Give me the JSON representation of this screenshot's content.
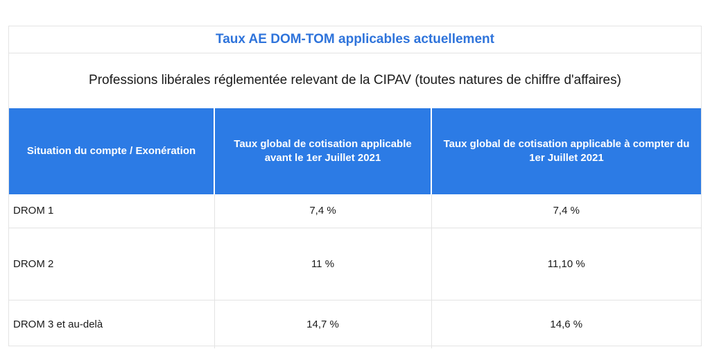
{
  "title": "Taux AE DOM-TOM applicables actuellement",
  "subtitle": "Professions libérales réglementée relevant de la CIPAV (toutes natures de chiffre d'affaires)",
  "colors": {
    "title": "#2f74db",
    "header_bg": "#2c7be5",
    "header_text": "#ffffff"
  },
  "table": {
    "headers": [
      "Situation du compte / Exonération",
      "Taux global de cotisation applicable avant le 1er Juillet 2021",
      "Taux global de cotisation applicable à compter du 1er Juillet 2021"
    ],
    "rows": [
      {
        "situation": "DROM 1",
        "avant": "7,4 %",
        "apres": "7,4 %"
      },
      {
        "situation": "DROM 2",
        "avant": "11 %",
        "apres": "11,10 %"
      },
      {
        "situation": "DROM 3 et au-delà",
        "avant": "14,7 %",
        "apres": "14,6 %"
      }
    ]
  }
}
